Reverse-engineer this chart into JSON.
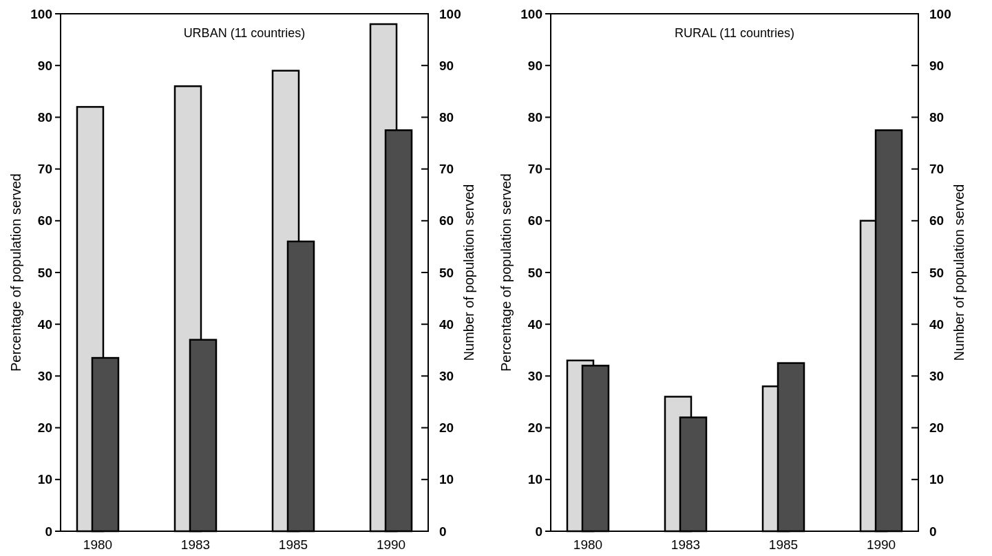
{
  "chart_data": [
    {
      "type": "bar",
      "title": "URBAN (11 countries)",
      "ylabel": "Percentage of population served",
      "y2label": "Number of population served",
      "categories": [
        "1980",
        "1983",
        "1985",
        "1990"
      ],
      "series": [
        {
          "color": "#d9d9d9",
          "values": [
            82,
            86,
            89,
            98
          ]
        },
        {
          "color": "#4d4d4d",
          "values": [
            33.5,
            37,
            56,
            77.5
          ]
        }
      ],
      "ylim": [
        0,
        100
      ],
      "yticks": [
        0,
        10,
        20,
        30,
        40,
        50,
        60,
        70,
        80,
        90,
        100
      ],
      "y2lim": [
        0,
        100
      ],
      "y2ticks": [
        0,
        10,
        20,
        30,
        40,
        50,
        60,
        70,
        80,
        90,
        100
      ]
    },
    {
      "type": "bar",
      "title": "RURAL (11 countries)",
      "ylabel": "Percentage of population served",
      "y2label": "Number of population served",
      "categories": [
        "1980",
        "1983",
        "1985",
        "1990"
      ],
      "series": [
        {
          "color": "#d9d9d9",
          "values": [
            33,
            26,
            28,
            60
          ]
        },
        {
          "color": "#4d4d4d",
          "values": [
            32,
            22,
            32.5,
            77.5
          ]
        }
      ],
      "ylim": [
        0,
        100
      ],
      "yticks": [
        0,
        10,
        20,
        30,
        40,
        50,
        60,
        70,
        80,
        90,
        100
      ],
      "y2lim": [
        0,
        100
      ],
      "y2ticks": [
        0,
        10,
        20,
        30,
        40,
        50,
        60,
        70,
        80,
        90,
        100
      ]
    }
  ]
}
